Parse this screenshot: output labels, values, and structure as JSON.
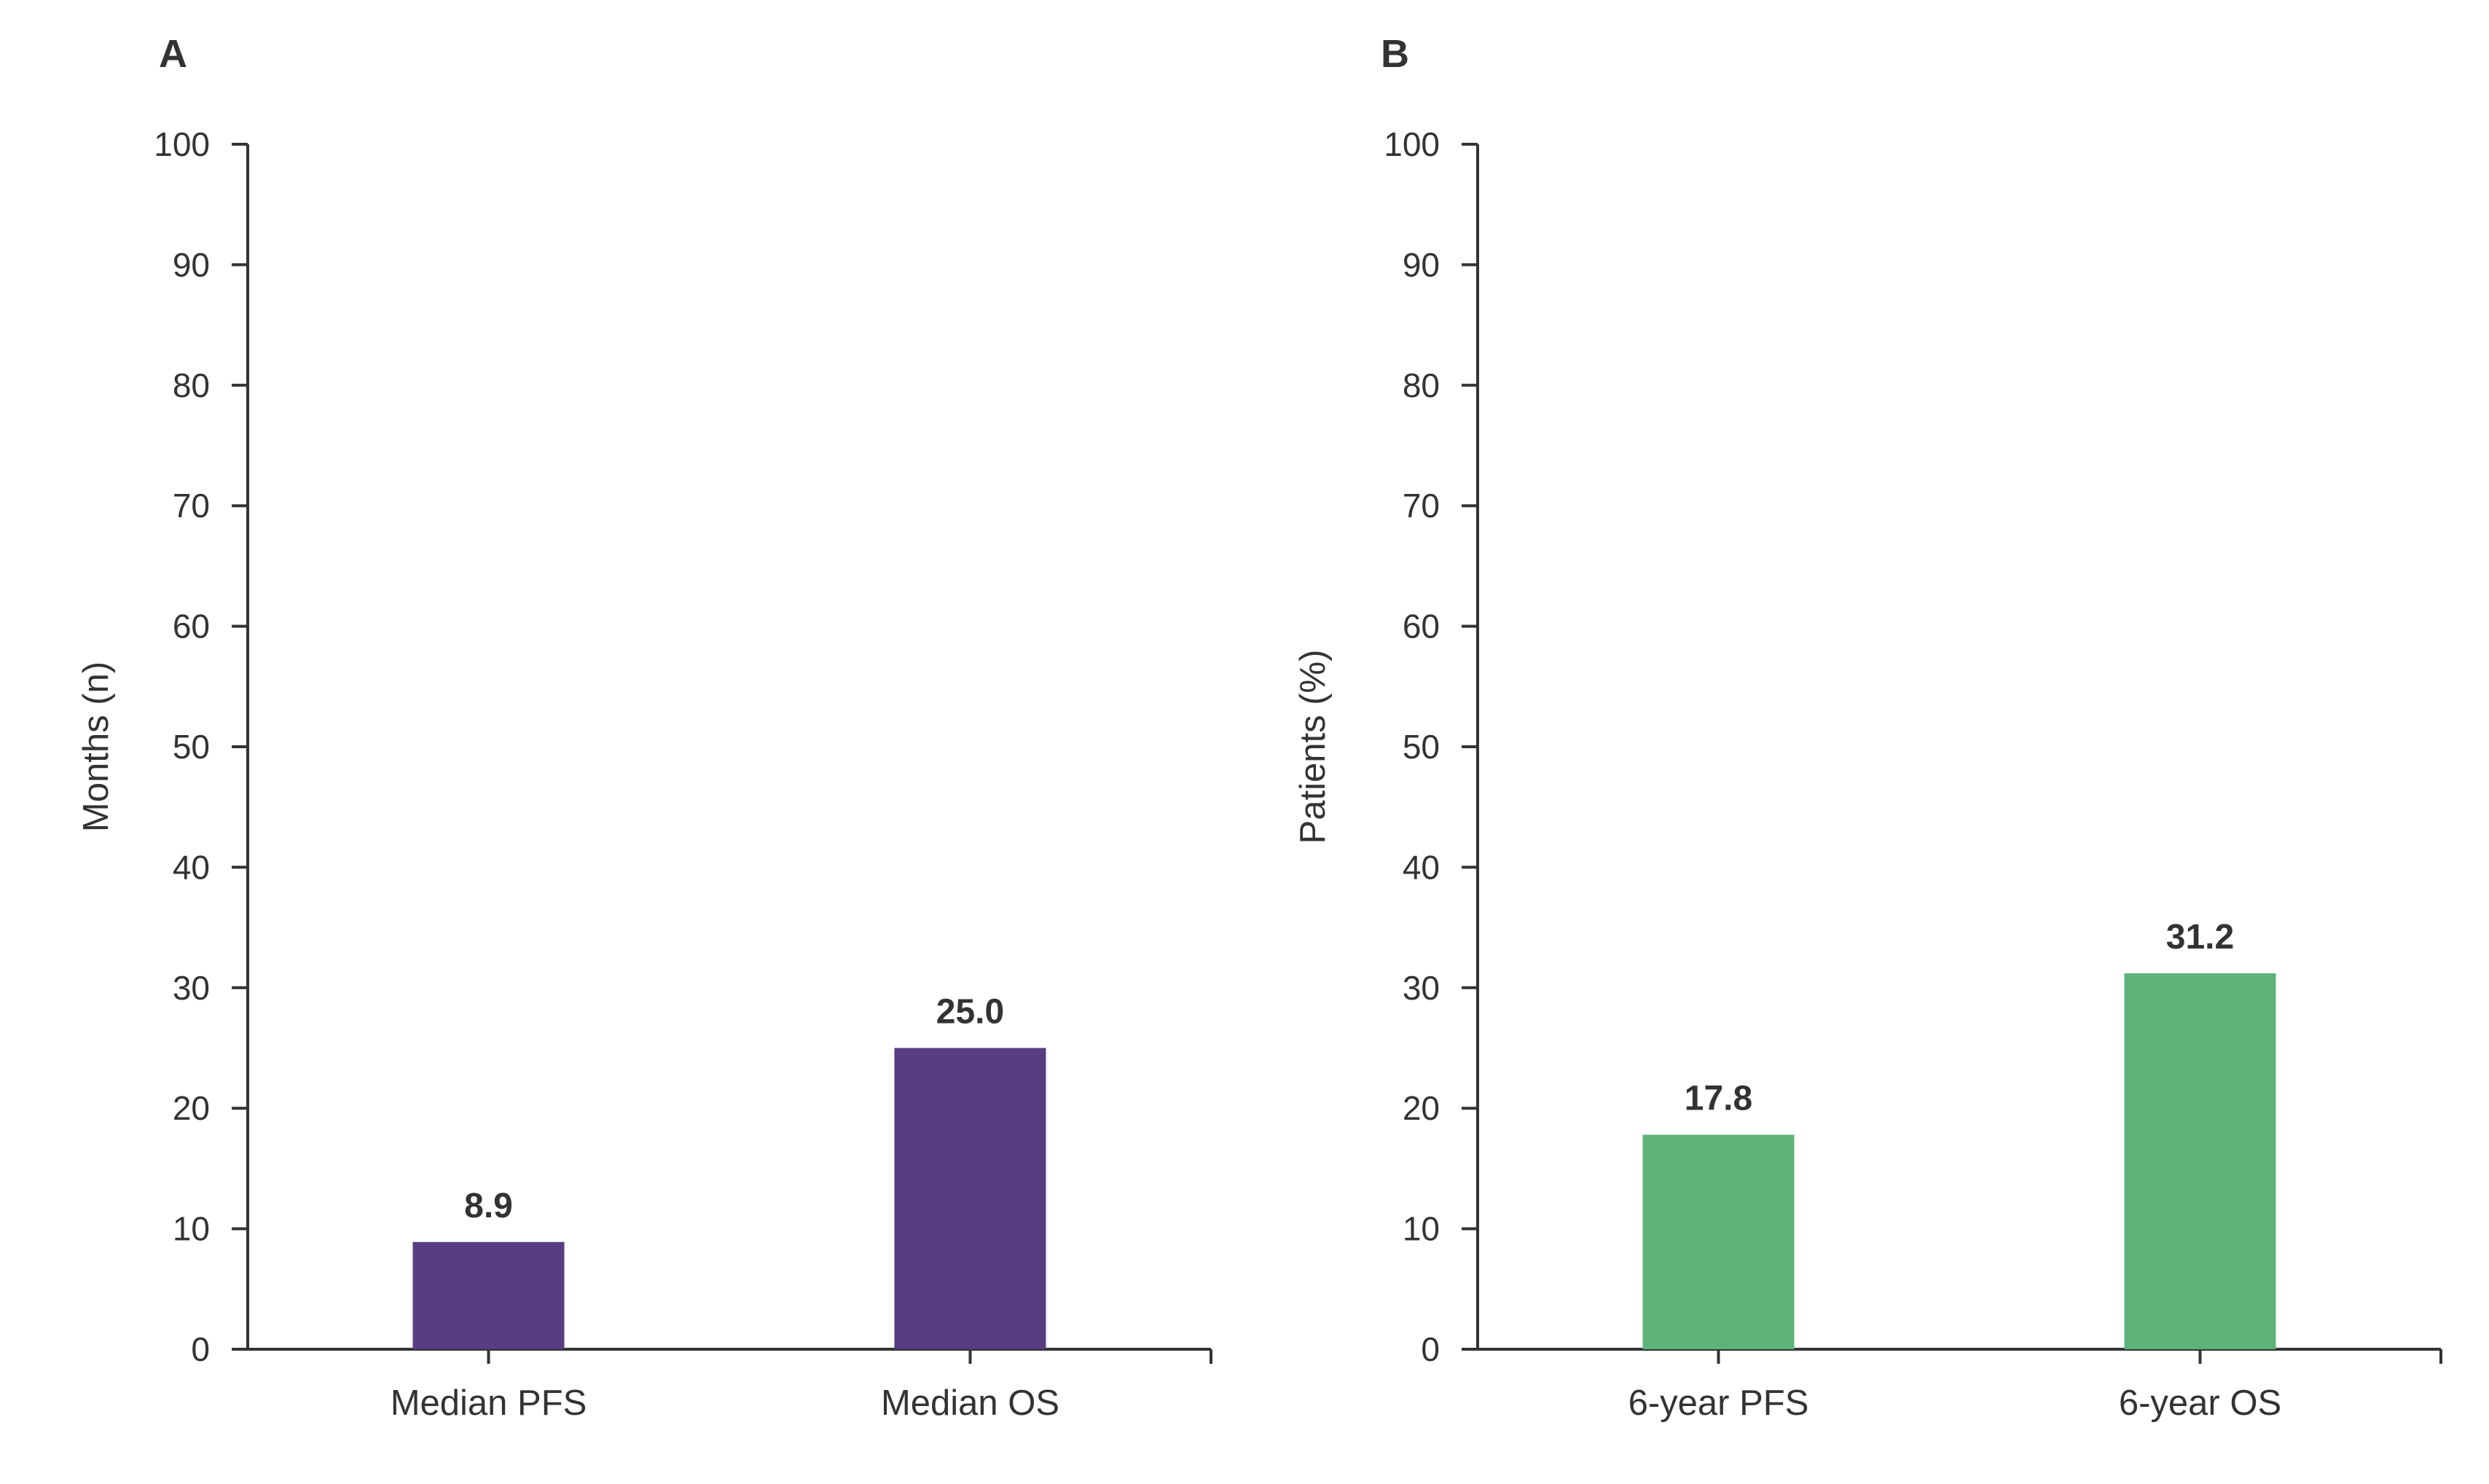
{
  "chart_data": [
    {
      "type": "bar",
      "panel_label": "A",
      "categories": [
        "Median PFS",
        "Median OS"
      ],
      "values": [
        8.9,
        25.0
      ],
      "value_labels": [
        "8.9",
        "25.0"
      ],
      "ylabel": "Months (n)",
      "ylim": [
        0,
        100
      ],
      "yticks": [
        "0",
        "10",
        "20",
        "30",
        "40",
        "50",
        "60",
        "70",
        "80",
        "90",
        "100"
      ],
      "bar_color": "#573d82",
      "grid": false,
      "legend": "none"
    },
    {
      "type": "bar",
      "panel_label": "B",
      "categories": [
        "6-year PFS",
        "6-year OS"
      ],
      "values": [
        17.8,
        31.2
      ],
      "value_labels": [
        "17.8",
        "31.2"
      ],
      "ylabel": "Patients (%)",
      "ylim": [
        0,
        100
      ],
      "yticks": [
        "0",
        "10",
        "20",
        "30",
        "40",
        "50",
        "60",
        "70",
        "80",
        "90",
        "100"
      ],
      "bar_color": "#5db37a",
      "grid": false,
      "legend": "none"
    }
  ]
}
